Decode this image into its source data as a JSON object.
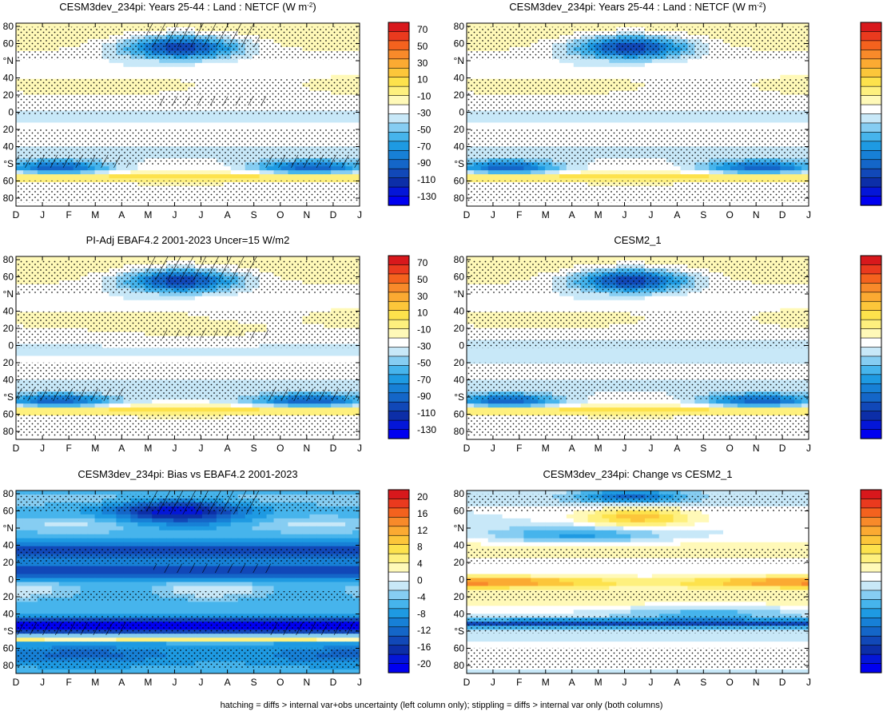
{
  "figure": {
    "footnote": "hatching = diffs > internal var+obs uncertainty (left column only); stippling = diffs > internal var only (both columns)"
  },
  "scales": {
    "netcf": {
      "labels": [
        "70",
        "50",
        "30",
        "10",
        "-10",
        "-30",
        "-50",
        "-70",
        "-90",
        "-110",
        "-130"
      ],
      "colors": [
        "#d8181c",
        "#ea3a1e",
        "#f4621e",
        "#f88a2a",
        "#fbaa32",
        "#fcc63a",
        "#fde24c",
        "#fef07e",
        "#fff9b8",
        "#ffffff",
        "#c8e8f8",
        "#86cdf2",
        "#46b4ec",
        "#1e9ae2",
        "#1780d6",
        "#1466c8",
        "#1148b8",
        "#0c2ea8",
        "#0416d8",
        "#0000f0"
      ]
    },
    "diff": {
      "labels": [
        "20",
        "16",
        "12",
        "8",
        "4",
        "0",
        "-4",
        "-8",
        "-12",
        "-16",
        "-20"
      ],
      "colors": [
        "#d8181c",
        "#ea3a1e",
        "#f4621e",
        "#f88a2a",
        "#fbaa32",
        "#fcc63a",
        "#fde24c",
        "#fef07e",
        "#fff9b8",
        "#ffffff",
        "#c8e8f8",
        "#86cdf2",
        "#46b4ec",
        "#1e9ae2",
        "#1780d6",
        "#1466c8",
        "#1148b8",
        "#0c2ea8",
        "#0416d8",
        "#0000f0"
      ]
    }
  },
  "chart_data": [
    {
      "type": "heatmap",
      "title": "CESM3dev_234pi: Years 25-44 : Land : NETCF (W m",
      "title_sup": "-2",
      "title_close": ")",
      "x_ticks": [
        "D",
        "J",
        "F",
        "M",
        "A",
        "M",
        "J",
        "J",
        "A",
        "S",
        "O",
        "N",
        "D",
        "J"
      ],
      "y_ticks": [
        "80",
        "60",
        "°N",
        "40",
        "20",
        "0",
        "20",
        "40",
        "°S",
        "60",
        "80"
      ],
      "colorbar": "netcf",
      "field": "model",
      "hatching": true,
      "stippling": true
    },
    {
      "type": "heatmap",
      "title": "CESM3dev_234pi: Years 25-44 : Land : NETCF (W m",
      "title_sup": "-2",
      "title_close": ")",
      "x_ticks": [
        "D",
        "J",
        "F",
        "M",
        "A",
        "M",
        "J",
        "J",
        "A",
        "S",
        "O",
        "N",
        "D",
        "J"
      ],
      "y_ticks": [
        "80",
        "60",
        "°N",
        "40",
        "20",
        "0",
        "20",
        "40",
        "°S",
        "60",
        "80"
      ],
      "colorbar": "netcf",
      "field": "model",
      "hatching": false,
      "stippling": true
    },
    {
      "type": "heatmap",
      "title": "PI-Adj EBAF4.2 2001-2023 Uncer=15 W/m2",
      "x_ticks": [
        "D",
        "J",
        "F",
        "M",
        "A",
        "M",
        "J",
        "J",
        "A",
        "S",
        "O",
        "N",
        "D",
        "J"
      ],
      "y_ticks": [
        "80",
        "60",
        "°N",
        "40",
        "20",
        "0",
        "20",
        "40",
        "°S",
        "60",
        "80"
      ],
      "colorbar": "netcf",
      "field": "obs",
      "hatching": true,
      "stippling": true
    },
    {
      "type": "heatmap",
      "title": "CESM2_1",
      "x_ticks": [
        "D",
        "J",
        "F",
        "M",
        "A",
        "M",
        "J",
        "J",
        "A",
        "S",
        "O",
        "N",
        "D",
        "J"
      ],
      "y_ticks": [
        "80",
        "60",
        "°N",
        "40",
        "20",
        "0",
        "20",
        "40",
        "°S",
        "60",
        "80"
      ],
      "colorbar": "netcf",
      "field": "cesm2",
      "hatching": false,
      "stippling": true
    },
    {
      "type": "heatmap",
      "title": "CESM3dev_234pi: Bias vs EBAF4.2 2001-2023",
      "x_ticks": [
        "D",
        "J",
        "F",
        "M",
        "A",
        "M",
        "J",
        "J",
        "A",
        "S",
        "O",
        "N",
        "D",
        "J"
      ],
      "y_ticks": [
        "80",
        "60",
        "°N",
        "40",
        "20",
        "0",
        "20",
        "40",
        "°S",
        "60",
        "80"
      ],
      "colorbar": "diff",
      "field": "bias",
      "hatching": true,
      "stippling": true
    },
    {
      "type": "heatmap",
      "title": "CESM3dev_234pi: Change vs CESM2_1",
      "x_ticks": [
        "D",
        "J",
        "F",
        "M",
        "A",
        "M",
        "J",
        "J",
        "A",
        "S",
        "O",
        "N",
        "D",
        "J"
      ],
      "y_ticks": [
        "80",
        "60",
        "°N",
        "40",
        "20",
        "0",
        "20",
        "40",
        "°S",
        "60",
        "80"
      ],
      "colorbar": "diff",
      "field": "change",
      "hatching": false,
      "stippling": true
    }
  ]
}
